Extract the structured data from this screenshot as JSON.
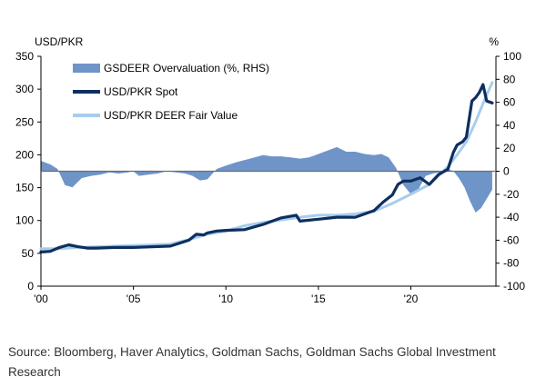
{
  "chart_data": {
    "type": "line",
    "title": "",
    "left_axis": {
      "label": "USD/PKR",
      "ticks": [
        0,
        50,
        100,
        150,
        200,
        250,
        300,
        350
      ],
      "range": [
        0,
        350
      ]
    },
    "right_axis": {
      "label": "%",
      "ticks": [
        -100,
        -80,
        -60,
        -40,
        -20,
        0,
        20,
        40,
        60,
        80,
        100
      ],
      "range": [
        -100,
        100
      ]
    },
    "x_axis": {
      "ticks": [
        "'00",
        "'05",
        "'10",
        "'15",
        "'20"
      ],
      "tick_years": [
        2000,
        2005,
        2010,
        2015,
        2020
      ],
      "range": [
        2000,
        2024.6
      ]
    },
    "legend_position": "top-left",
    "series": [
      {
        "name": "GSDEER Overvaluation (%, RHS)",
        "type": "area",
        "axis": "right",
        "color": "#6f94c8",
        "x": [
          2000.0,
          2000.5,
          2000.9,
          2001.3,
          2001.7,
          2002.2,
          2002.7,
          2003.2,
          2003.7,
          2004.2,
          2004.7,
          2005.0,
          2005.3,
          2005.8,
          2006.3,
          2006.8,
          2007.3,
          2007.8,
          2008.2,
          2008.6,
          2009.0,
          2009.5,
          2010.0,
          2010.6,
          2011.3,
          2012.0,
          2012.5,
          2013.0,
          2013.5,
          2014.0,
          2014.5,
          2015.0,
          2015.5,
          2016.0,
          2016.5,
          2017.0,
          2017.5,
          2018.0,
          2018.4,
          2018.8,
          2019.2,
          2019.6,
          2020.0,
          2020.4,
          2020.8,
          2021.2,
          2021.6,
          2022.0,
          2022.3,
          2022.6,
          2022.9,
          2023.2,
          2023.5,
          2023.8,
          2024.1,
          2024.4
        ],
        "values": [
          9,
          6,
          2,
          -12,
          -14,
          -6,
          -4,
          -3,
          -1,
          -2,
          -1,
          0,
          -4,
          -3,
          -2,
          0,
          -1,
          -2,
          -4,
          -8,
          -7,
          2,
          5,
          8,
          11,
          14,
          13,
          13,
          12,
          11,
          12,
          15,
          18,
          21,
          17,
          17,
          15,
          14,
          15,
          12,
          3,
          -12,
          -20,
          -16,
          -4,
          -2,
          -1,
          2,
          0,
          -6,
          -14,
          -26,
          -36,
          -32,
          -24,
          -16
        ]
      },
      {
        "name": "USD/PKR Spot",
        "type": "line",
        "axis": "left",
        "color": "#0e2f5e",
        "x": [
          2000.0,
          2000.5,
          2001.0,
          2001.5,
          2002.0,
          2002.5,
          2003.0,
          2004.0,
          2005.0,
          2006.0,
          2007.0,
          2008.0,
          2008.4,
          2008.8,
          2009.0,
          2009.5,
          2010.0,
          2011.0,
          2012.0,
          2013.0,
          2013.8,
          2014.0,
          2015.0,
          2016.0,
          2017.0,
          2018.0,
          2018.5,
          2019.0,
          2019.3,
          2019.6,
          2020.0,
          2020.5,
          2021.0,
          2021.5,
          2022.0,
          2022.3,
          2022.5,
          2022.8,
          2023.0,
          2023.3,
          2023.5,
          2023.7,
          2023.9,
          2024.1,
          2024.4
        ],
        "values": [
          52,
          53,
          59,
          63,
          60,
          58,
          58,
          59,
          59,
          60,
          61,
          70,
          79,
          78,
          81,
          84,
          85,
          86,
          94,
          104,
          108,
          99,
          102,
          105,
          105,
          115,
          128,
          139,
          155,
          160,
          160,
          165,
          155,
          170,
          178,
          204,
          215,
          220,
          227,
          282,
          287,
          295,
          307,
          282,
          279
        ]
      },
      {
        "name": "USD/PKR DEER Fair Value",
        "type": "line",
        "axis": "left",
        "color": "#a8cdec",
        "x": [
          2000.0,
          2001.0,
          2002.0,
          2003.0,
          2004.0,
          2005.0,
          2006.0,
          2007.0,
          2008.0,
          2009.0,
          2010.0,
          2011.0,
          2012.0,
          2013.0,
          2014.0,
          2015.0,
          2016.0,
          2017.0,
          2018.0,
          2019.0,
          2020.0,
          2021.0,
          2022.0,
          2022.5,
          2023.0,
          2023.5,
          2024.0,
          2024.4
        ],
        "values": [
          57,
          57,
          59,
          60,
          61,
          62,
          63,
          64,
          71,
          79,
          84,
          92,
          97,
          101,
          105,
          108,
          108,
          110,
          114,
          126,
          140,
          155,
          182,
          200,
          220,
          250,
          285,
          310
        ]
      }
    ]
  },
  "source_note": "Source: Bloomberg, Haver Analytics, Goldman Sachs, Goldman Sachs Global Investment Research"
}
